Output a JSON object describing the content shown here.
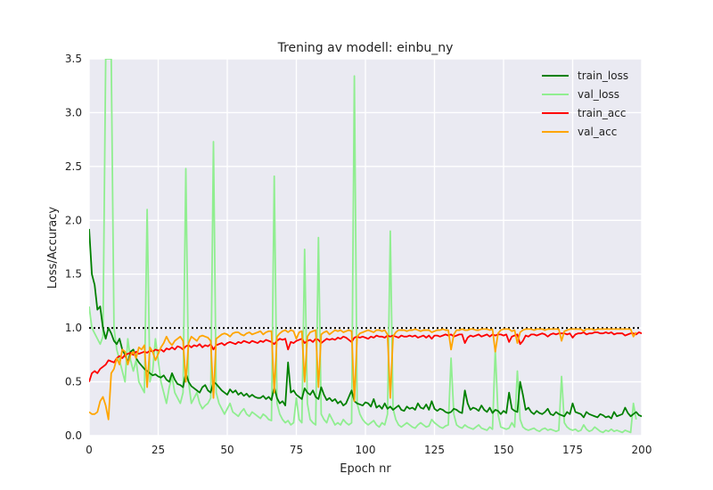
{
  "chart_data": {
    "type": "line",
    "title": "Trening av modell: einbu_ny",
    "xlabel": "Epoch nr",
    "ylabel": "Loss/Accuracy",
    "xlim": [
      0,
      200
    ],
    "ylim": [
      0.0,
      3.5
    ],
    "xticks": [
      0,
      25,
      50,
      75,
      100,
      125,
      150,
      175,
      200
    ],
    "yticks": [
      0.0,
      0.5,
      1.0,
      1.5,
      2.0,
      2.5,
      3.0,
      3.5
    ],
    "xtick_labels": [
      "0",
      "25",
      "50",
      "75",
      "100",
      "125",
      "150",
      "175",
      "200"
    ],
    "ytick_labels": [
      "0.0",
      "0.5",
      "1.0",
      "1.5",
      "2.0",
      "2.5",
      "3.0",
      "3.5"
    ],
    "grid": true,
    "background": "#eaeaf2",
    "legend_position": "top-right",
    "reference_line": {
      "y": 1.0,
      "style": "dotted",
      "color": "#000000"
    },
    "series": [
      {
        "name": "train_loss",
        "color": "#008000",
        "values": [
          1.92,
          1.5,
          1.4,
          1.17,
          1.2,
          1.0,
          0.9,
          1.0,
          0.95,
          0.88,
          0.85,
          0.9,
          0.8,
          0.75,
          0.68,
          0.78,
          0.8,
          0.72,
          0.68,
          0.65,
          0.62,
          0.6,
          0.58,
          0.56,
          0.57,
          0.55,
          0.54,
          0.56,
          0.52,
          0.5,
          0.58,
          0.52,
          0.48,
          0.47,
          0.45,
          0.58,
          0.5,
          0.46,
          0.44,
          0.42,
          0.4,
          0.45,
          0.47,
          0.42,
          0.4,
          0.5,
          0.48,
          0.45,
          0.42,
          0.4,
          0.38,
          0.43,
          0.4,
          0.42,
          0.38,
          0.4,
          0.37,
          0.39,
          0.36,
          0.38,
          0.36,
          0.35,
          0.35,
          0.37,
          0.34,
          0.36,
          0.33,
          0.45,
          0.35,
          0.3,
          0.32,
          0.28,
          0.68,
          0.4,
          0.42,
          0.38,
          0.36,
          0.34,
          0.44,
          0.4,
          0.38,
          0.42,
          0.36,
          0.34,
          0.45,
          0.38,
          0.33,
          0.35,
          0.32,
          0.34,
          0.3,
          0.32,
          0.28,
          0.3,
          0.36,
          0.42,
          0.32,
          0.3,
          0.29,
          0.28,
          0.31,
          0.3,
          0.27,
          0.34,
          0.26,
          0.28,
          0.25,
          0.3,
          0.25,
          0.27,
          0.24,
          0.26,
          0.28,
          0.24,
          0.23,
          0.27,
          0.25,
          0.26,
          0.24,
          0.3,
          0.26,
          0.25,
          0.29,
          0.24,
          0.32,
          0.25,
          0.23,
          0.25,
          0.24,
          0.22,
          0.21,
          0.22,
          0.25,
          0.24,
          0.22,
          0.21,
          0.42,
          0.3,
          0.24,
          0.26,
          0.25,
          0.23,
          0.28,
          0.24,
          0.22,
          0.26,
          0.21,
          0.24,
          0.23,
          0.2,
          0.23,
          0.21,
          0.4,
          0.25,
          0.23,
          0.22,
          0.5,
          0.38,
          0.24,
          0.26,
          0.22,
          0.2,
          0.23,
          0.21,
          0.2,
          0.22,
          0.25,
          0.2,
          0.19,
          0.22,
          0.2,
          0.19,
          0.18,
          0.22,
          0.2,
          0.3,
          0.22,
          0.21,
          0.2,
          0.17,
          0.22,
          0.2,
          0.19,
          0.18,
          0.17,
          0.2,
          0.19,
          0.17,
          0.18,
          0.16,
          0.22,
          0.18,
          0.19,
          0.2,
          0.26,
          0.21,
          0.18,
          0.2,
          0.22,
          0.19,
          0.18,
          0.17,
          0.18,
          0.2
        ]
      },
      {
        "name": "val_loss",
        "color": "#90ee90",
        "values": [
          1.2,
          1.0,
          0.95,
          0.9,
          0.85,
          0.92,
          3.5,
          3.5,
          3.5,
          1.0,
          0.8,
          0.7,
          0.6,
          0.5,
          0.9,
          0.7,
          0.6,
          0.7,
          0.5,
          0.45,
          0.4,
          2.1,
          0.5,
          0.6,
          0.9,
          0.7,
          0.5,
          0.4,
          0.3,
          0.45,
          0.55,
          0.4,
          0.35,
          0.3,
          0.4,
          2.48,
          0.5,
          0.3,
          0.35,
          0.4,
          0.3,
          0.25,
          0.28,
          0.3,
          0.35,
          2.73,
          0.4,
          0.3,
          0.25,
          0.2,
          0.25,
          0.3,
          0.22,
          0.2,
          0.18,
          0.22,
          0.25,
          0.2,
          0.18,
          0.22,
          0.2,
          0.18,
          0.16,
          0.2,
          0.18,
          0.15,
          0.14,
          2.41,
          0.3,
          0.2,
          0.15,
          0.12,
          0.14,
          0.1,
          0.12,
          0.35,
          0.15,
          0.12,
          1.73,
          0.3,
          0.15,
          0.12,
          0.1,
          1.84,
          0.2,
          0.15,
          0.12,
          0.2,
          0.15,
          0.1,
          0.12,
          0.1,
          0.15,
          0.12,
          0.1,
          0.12,
          3.34,
          0.3,
          0.2,
          0.15,
          0.12,
          0.1,
          0.12,
          0.14,
          0.1,
          0.08,
          0.12,
          0.1,
          0.2,
          1.9,
          0.25,
          0.15,
          0.1,
          0.08,
          0.1,
          0.12,
          0.1,
          0.08,
          0.07,
          0.1,
          0.12,
          0.1,
          0.08,
          0.09,
          0.15,
          0.12,
          0.1,
          0.08,
          0.07,
          0.09,
          0.1,
          0.72,
          0.2,
          0.1,
          0.08,
          0.07,
          0.1,
          0.08,
          0.07,
          0.06,
          0.08,
          0.1,
          0.07,
          0.06,
          0.05,
          0.08,
          0.06,
          0.8,
          0.2,
          0.08,
          0.07,
          0.06,
          0.07,
          0.12,
          0.08,
          0.6,
          0.15,
          0.08,
          0.06,
          0.05,
          0.06,
          0.07,
          0.05,
          0.04,
          0.06,
          0.07,
          0.05,
          0.06,
          0.05,
          0.04,
          0.05,
          0.55,
          0.12,
          0.08,
          0.06,
          0.05,
          0.06,
          0.04,
          0.05,
          0.1,
          0.06,
          0.04,
          0.05,
          0.08,
          0.06,
          0.04,
          0.03,
          0.05,
          0.04,
          0.06,
          0.04,
          0.05,
          0.04,
          0.03,
          0.05,
          0.04,
          0.03,
          0.3,
          0.15
        ]
      },
      {
        "name": "train_acc",
        "color": "#ff0000",
        "values": [
          0.5,
          0.58,
          0.6,
          0.58,
          0.62,
          0.64,
          0.66,
          0.7,
          0.69,
          0.68,
          0.72,
          0.74,
          0.72,
          0.75,
          0.76,
          0.77,
          0.75,
          0.78,
          0.76,
          0.77,
          0.78,
          0.77,
          0.79,
          0.78,
          0.8,
          0.79,
          0.8,
          0.78,
          0.81,
          0.8,
          0.82,
          0.8,
          0.83,
          0.82,
          0.8,
          0.83,
          0.84,
          0.82,
          0.84,
          0.83,
          0.85,
          0.82,
          0.84,
          0.83,
          0.85,
          0.8,
          0.84,
          0.85,
          0.86,
          0.84,
          0.86,
          0.87,
          0.86,
          0.85,
          0.87,
          0.86,
          0.88,
          0.87,
          0.86,
          0.88,
          0.87,
          0.86,
          0.88,
          0.87,
          0.89,
          0.88,
          0.87,
          0.85,
          0.88,
          0.9,
          0.89,
          0.9,
          0.8,
          0.87,
          0.86,
          0.88,
          0.89,
          0.9,
          0.86,
          0.88,
          0.89,
          0.87,
          0.9,
          0.89,
          0.86,
          0.88,
          0.9,
          0.89,
          0.9,
          0.89,
          0.91,
          0.9,
          0.92,
          0.91,
          0.89,
          0.87,
          0.91,
          0.92,
          0.91,
          0.92,
          0.91,
          0.9,
          0.92,
          0.91,
          0.93,
          0.92,
          0.92,
          0.91,
          0.93,
          0.92,
          0.93,
          0.92,
          0.91,
          0.93,
          0.92,
          0.92,
          0.93,
          0.92,
          0.93,
          0.91,
          0.92,
          0.93,
          0.91,
          0.93,
          0.9,
          0.93,
          0.93,
          0.92,
          0.93,
          0.94,
          0.93,
          0.94,
          0.92,
          0.93,
          0.94,
          0.94,
          0.86,
          0.91,
          0.93,
          0.92,
          0.93,
          0.94,
          0.92,
          0.93,
          0.94,
          0.92,
          0.94,
          0.93,
          0.94,
          0.94,
          0.93,
          0.94,
          0.87,
          0.92,
          0.93,
          0.94,
          0.85,
          0.88,
          0.93,
          0.92,
          0.94,
          0.94,
          0.93,
          0.94,
          0.95,
          0.94,
          0.92,
          0.94,
          0.95,
          0.94,
          0.95,
          0.95,
          0.95,
          0.94,
          0.95,
          0.91,
          0.94,
          0.95,
          0.95,
          0.96,
          0.94,
          0.95,
          0.95,
          0.96,
          0.96,
          0.95,
          0.95,
          0.96,
          0.95,
          0.96,
          0.94,
          0.95,
          0.95,
          0.95,
          0.93,
          0.94,
          0.95,
          0.95,
          0.94,
          0.96,
          0.95,
          0.95,
          0.95,
          0.94
        ]
      },
      {
        "name": "val_acc",
        "color": "#ffa500",
        "values": [
          0.22,
          0.2,
          0.2,
          0.22,
          0.32,
          0.36,
          0.28,
          0.15,
          0.58,
          0.62,
          0.72,
          0.66,
          0.8,
          0.78,
          0.66,
          0.75,
          0.78,
          0.72,
          0.82,
          0.8,
          0.84,
          0.45,
          0.82,
          0.78,
          0.7,
          0.76,
          0.82,
          0.86,
          0.92,
          0.87,
          0.84,
          0.88,
          0.9,
          0.92,
          0.88,
          0.5,
          0.86,
          0.92,
          0.9,
          0.88,
          0.92,
          0.93,
          0.92,
          0.91,
          0.88,
          0.35,
          0.9,
          0.92,
          0.94,
          0.95,
          0.94,
          0.92,
          0.95,
          0.96,
          0.96,
          0.94,
          0.93,
          0.95,
          0.96,
          0.94,
          0.95,
          0.96,
          0.97,
          0.94,
          0.96,
          0.97,
          0.97,
          0.4,
          0.92,
          0.95,
          0.97,
          0.98,
          0.96,
          0.98,
          0.97,
          0.9,
          0.96,
          0.97,
          0.5,
          0.92,
          0.96,
          0.97,
          0.98,
          0.45,
          0.94,
          0.96,
          0.97,
          0.94,
          0.96,
          0.98,
          0.97,
          0.98,
          0.96,
          0.97,
          0.98,
          0.97,
          0.32,
          0.92,
          0.95,
          0.96,
          0.97,
          0.98,
          0.97,
          0.96,
          0.98,
          0.98,
          0.97,
          0.98,
          0.94,
          0.35,
          0.92,
          0.96,
          0.98,
          0.98,
          0.98,
          0.97,
          0.98,
          0.98,
          0.99,
          0.98,
          0.97,
          0.98,
          0.98,
          0.98,
          0.96,
          0.97,
          0.98,
          0.98,
          0.99,
          0.98,
          0.98,
          0.8,
          0.94,
          0.98,
          0.98,
          0.99,
          0.98,
          0.98,
          0.99,
          0.99,
          0.98,
          0.98,
          0.99,
          0.99,
          0.99,
          0.98,
          0.99,
          0.78,
          0.95,
          0.98,
          0.99,
          0.99,
          0.99,
          0.97,
          0.98,
          0.86,
          0.96,
          0.98,
          0.99,
          0.99,
          0.99,
          0.98,
          0.99,
          0.99,
          0.99,
          0.98,
          0.99,
          0.99,
          0.99,
          0.99,
          0.99,
          0.88,
          0.97,
          0.98,
          0.99,
          0.99,
          0.99,
          0.99,
          0.99,
          0.97,
          0.99,
          0.99,
          0.99,
          0.98,
          0.99,
          0.99,
          0.99,
          0.99,
          0.99,
          0.99,
          0.99,
          0.99,
          0.99,
          0.99,
          0.99,
          0.99,
          0.99,
          0.92,
          0.96
        ]
      }
    ]
  }
}
